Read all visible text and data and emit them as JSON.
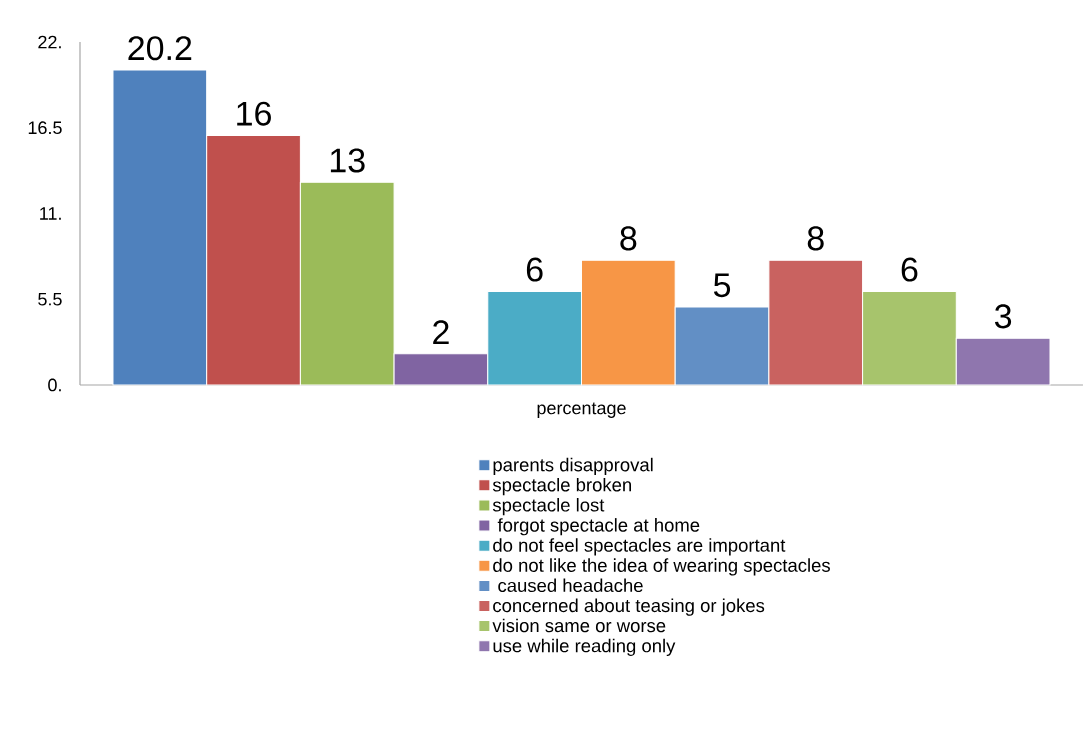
{
  "chart_data": {
    "type": "bar",
    "categories": [
      "percentage"
    ],
    "series": [
      {
        "name": "parents disapproval",
        "color": "#4f81bd",
        "values": [
          20.2
        ]
      },
      {
        "name": "spectacle broken",
        "color": "#c0504d",
        "values": [
          16
        ]
      },
      {
        "name": "spectacle lost",
        "color": "#9bbb59",
        "values": [
          13
        ]
      },
      {
        "name": " forgot spectacle at home",
        "color": "#8064a2",
        "values": [
          2
        ]
      },
      {
        "name": "do not feel spectacles are important",
        "color": "#4bacc6",
        "values": [
          6
        ]
      },
      {
        "name": "do not like the idea of wearing spectacles",
        "color": "#f79646",
        "values": [
          8
        ]
      },
      {
        "name": " caused headache",
        "color": "#628fc5",
        "values": [
          5
        ]
      },
      {
        "name": "concerned about teasing or jokes",
        "color": "#c96260",
        "values": [
          8
        ]
      },
      {
        "name": "vision same or worse",
        "color": "#a7c46c",
        "values": [
          6
        ]
      },
      {
        "name": "use while reading only",
        "color": "#8f76ae",
        "values": [
          3
        ]
      }
    ],
    "ylim": [
      0,
      22
    ],
    "yticks": [
      {
        "value": 0,
        "label": "0."
      },
      {
        "value": 5.5,
        "label": "5.5"
      },
      {
        "value": 11,
        "label": "11."
      },
      {
        "value": 16.5,
        "label": "16.5"
      },
      {
        "value": 22,
        "label": "22."
      }
    ],
    "data_labels": true,
    "legend": "bottom",
    "grid": false
  }
}
